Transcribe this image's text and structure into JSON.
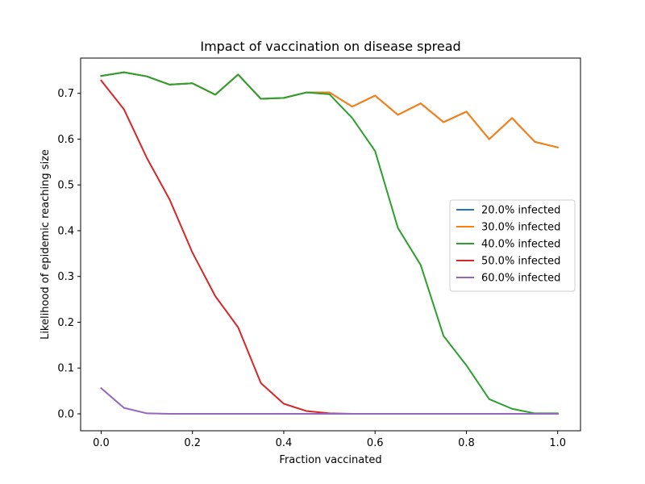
{
  "chart_data": {
    "type": "line",
    "title": "Impact of vaccination on disease spread",
    "xlabel": "Fraction vaccinated",
    "ylabel": "Likelihood of epidemic reaching size",
    "xlim": [
      -0.045,
      1.05
    ],
    "ylim": [
      -0.037,
      0.777
    ],
    "x_ticks": [
      0.0,
      0.2,
      0.4,
      0.6,
      0.8,
      1.0
    ],
    "x_tick_labels": [
      "0.0",
      "0.2",
      "0.4",
      "0.6",
      "0.8",
      "1.0"
    ],
    "y_ticks": [
      0.0,
      0.1,
      0.2,
      0.3,
      0.4,
      0.5,
      0.6,
      0.7
    ],
    "y_tick_labels": [
      "0.0",
      "0.1",
      "0.2",
      "0.3",
      "0.4",
      "0.5",
      "0.6",
      "0.7"
    ],
    "grid": false,
    "legend_position": "center-right",
    "x": [
      0.0,
      0.05,
      0.1,
      0.15,
      0.2,
      0.25,
      0.3,
      0.35,
      0.4,
      0.45,
      0.5,
      0.55,
      0.6,
      0.65,
      0.7,
      0.75,
      0.8,
      0.85,
      0.9,
      0.95,
      1.0
    ],
    "series": [
      {
        "name": "20.0% infected",
        "color": "#1f77b4",
        "values": [
          0.738,
          0.746,
          0.737,
          0.719,
          0.722,
          0.697,
          0.741,
          0.688,
          0.69,
          0.702,
          0.702,
          0.671,
          0.695,
          0.653,
          0.678,
          0.637,
          0.66,
          0.6,
          0.646,
          0.594,
          0.582
        ]
      },
      {
        "name": "30.0% infected",
        "color": "#ff7f0e",
        "values": [
          0.738,
          0.746,
          0.737,
          0.719,
          0.722,
          0.697,
          0.741,
          0.688,
          0.69,
          0.702,
          0.702,
          0.671,
          0.695,
          0.653,
          0.678,
          0.637,
          0.66,
          0.6,
          0.646,
          0.594,
          0.582
        ]
      },
      {
        "name": "40.0% infected",
        "color": "#2ca02c",
        "values": [
          0.738,
          0.746,
          0.737,
          0.719,
          0.722,
          0.697,
          0.741,
          0.688,
          0.69,
          0.702,
          0.698,
          0.646,
          0.574,
          0.406,
          0.325,
          0.17,
          0.106,
          0.032,
          0.011,
          0.001,
          0.001
        ]
      },
      {
        "name": "50.0% infected",
        "color": "#d62728",
        "values": [
          0.728,
          0.665,
          0.559,
          0.468,
          0.352,
          0.257,
          0.189,
          0.067,
          0.022,
          0.006,
          0.001,
          0.0,
          0.0,
          0.0,
          0.0,
          0.0,
          0.0,
          0.0,
          0.0,
          0.0,
          0.0
        ]
      },
      {
        "name": "60.0% infected",
        "color": "#9467bd",
        "values": [
          0.056,
          0.013,
          0.001,
          0.0,
          0.0,
          0.0,
          0.0,
          0.0,
          0.0,
          0.0,
          0.0,
          0.0,
          0.0,
          0.0,
          0.0,
          0.0,
          0.0,
          0.0,
          0.0,
          0.0,
          0.0
        ]
      }
    ]
  }
}
